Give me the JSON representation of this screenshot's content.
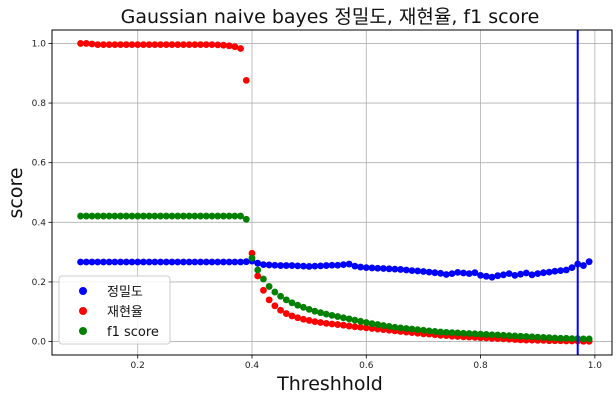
{
  "chart_data": {
    "type": "scatter",
    "title": "Gaussian naive bayes 정밀도, 재현율, f1 score",
    "xlabel": "Threshhold",
    "ylabel": "score",
    "xlim": [
      0.05,
      1.03
    ],
    "ylim": [
      -0.045,
      1.045
    ],
    "xticks": [
      "0.2",
      "0.4",
      "0.6",
      "0.8",
      "1.0"
    ],
    "yticks": [
      "0.0",
      "0.2",
      "0.4",
      "0.6",
      "0.8",
      "1.0"
    ],
    "grid": true,
    "legend_position": "lower-left",
    "vline": {
      "x": 0.97,
      "color": "#0000ff"
    },
    "dashed_line": {
      "x": [
        0.86,
        0.99
      ],
      "y": [
        0.0,
        0.0
      ],
      "color": "#ff0000"
    },
    "x": [
      0.1,
      0.11,
      0.12,
      0.13,
      0.14,
      0.15,
      0.16,
      0.17,
      0.18,
      0.19,
      0.2,
      0.21,
      0.22,
      0.23,
      0.24,
      0.25,
      0.26,
      0.27,
      0.28,
      0.29,
      0.3,
      0.31,
      0.32,
      0.33,
      0.34,
      0.35,
      0.36,
      0.37,
      0.38,
      0.39,
      0.4,
      0.41,
      0.42,
      0.43,
      0.44,
      0.45,
      0.46,
      0.47,
      0.48,
      0.49,
      0.5,
      0.51,
      0.52,
      0.53,
      0.54,
      0.55,
      0.56,
      0.57,
      0.58,
      0.59,
      0.6,
      0.61,
      0.62,
      0.63,
      0.64,
      0.65,
      0.66,
      0.67,
      0.68,
      0.69,
      0.7,
      0.71,
      0.72,
      0.73,
      0.74,
      0.75,
      0.76,
      0.77,
      0.78,
      0.79,
      0.8,
      0.81,
      0.82,
      0.83,
      0.84,
      0.85,
      0.86,
      0.87,
      0.88,
      0.89,
      0.9,
      0.91,
      0.92,
      0.93,
      0.94,
      0.95,
      0.96,
      0.97,
      0.98,
      0.99
    ],
    "series": [
      {
        "name": "정밀도",
        "color": "#0000ff",
        "values": [
          0.267,
          0.267,
          0.267,
          0.267,
          0.267,
          0.267,
          0.267,
          0.267,
          0.267,
          0.267,
          0.267,
          0.267,
          0.267,
          0.267,
          0.267,
          0.267,
          0.267,
          0.267,
          0.267,
          0.267,
          0.267,
          0.267,
          0.267,
          0.267,
          0.267,
          0.267,
          0.267,
          0.267,
          0.267,
          0.268,
          0.27,
          0.263,
          0.258,
          0.257,
          0.256,
          0.255,
          0.255,
          0.255,
          0.254,
          0.253,
          0.252,
          0.253,
          0.254,
          0.255,
          0.256,
          0.256,
          0.258,
          0.26,
          0.253,
          0.25,
          0.248,
          0.247,
          0.246,
          0.245,
          0.244,
          0.243,
          0.242,
          0.24,
          0.238,
          0.237,
          0.235,
          0.233,
          0.231,
          0.229,
          0.225,
          0.228,
          0.232,
          0.23,
          0.228,
          0.231,
          0.222,
          0.219,
          0.216,
          0.221,
          0.224,
          0.228,
          0.222,
          0.226,
          0.23,
          0.224,
          0.228,
          0.231,
          0.233,
          0.236,
          0.238,
          0.24,
          0.248,
          0.26,
          0.255,
          0.268
        ]
      },
      {
        "name": "재현율",
        "color": "#ff0000",
        "values": [
          1.0,
          1.0,
          0.998,
          0.996,
          0.996,
          0.996,
          0.996,
          0.996,
          0.996,
          0.996,
          0.996,
          0.996,
          0.996,
          0.996,
          0.996,
          0.996,
          0.996,
          0.996,
          0.996,
          0.996,
          0.996,
          0.996,
          0.996,
          0.996,
          0.995,
          0.994,
          0.992,
          0.989,
          0.983,
          0.876,
          0.296,
          0.22,
          0.172,
          0.14,
          0.12,
          0.105,
          0.094,
          0.086,
          0.08,
          0.075,
          0.071,
          0.067,
          0.064,
          0.061,
          0.059,
          0.057,
          0.055,
          0.052,
          0.05,
          0.048,
          0.046,
          0.044,
          0.042,
          0.04,
          0.038,
          0.036,
          0.034,
          0.032,
          0.03,
          0.028,
          0.026,
          0.025,
          0.023,
          0.021,
          0.02,
          0.018,
          0.017,
          0.016,
          0.015,
          0.014,
          0.013,
          0.012,
          0.011,
          0.01,
          0.009,
          0.008,
          0.007,
          0.006,
          0.005,
          0.005,
          0.004,
          0.004,
          0.003,
          0.003,
          0.003,
          0.002,
          0.002,
          0.002,
          0.001,
          0.001
        ]
      },
      {
        "name": "f1 score",
        "color": "#008000",
        "values": [
          0.421,
          0.421,
          0.421,
          0.421,
          0.421,
          0.421,
          0.421,
          0.421,
          0.421,
          0.421,
          0.421,
          0.421,
          0.421,
          0.421,
          0.421,
          0.421,
          0.421,
          0.421,
          0.421,
          0.421,
          0.421,
          0.421,
          0.421,
          0.421,
          0.421,
          0.421,
          0.421,
          0.421,
          0.421,
          0.41,
          0.28,
          0.24,
          0.21,
          0.185,
          0.166,
          0.152,
          0.14,
          0.13,
          0.122,
          0.115,
          0.108,
          0.102,
          0.097,
          0.092,
          0.088,
          0.084,
          0.08,
          0.076,
          0.072,
          0.068,
          0.064,
          0.06,
          0.057,
          0.054,
          0.051,
          0.048,
          0.046,
          0.044,
          0.042,
          0.04,
          0.038,
          0.036,
          0.034,
          0.032,
          0.031,
          0.03,
          0.029,
          0.028,
          0.027,
          0.026,
          0.025,
          0.024,
          0.023,
          0.022,
          0.021,
          0.02,
          0.019,
          0.018,
          0.017,
          0.016,
          0.015,
          0.014,
          0.013,
          0.012,
          0.011,
          0.011,
          0.01,
          0.01,
          0.009,
          0.009
        ]
      }
    ]
  }
}
